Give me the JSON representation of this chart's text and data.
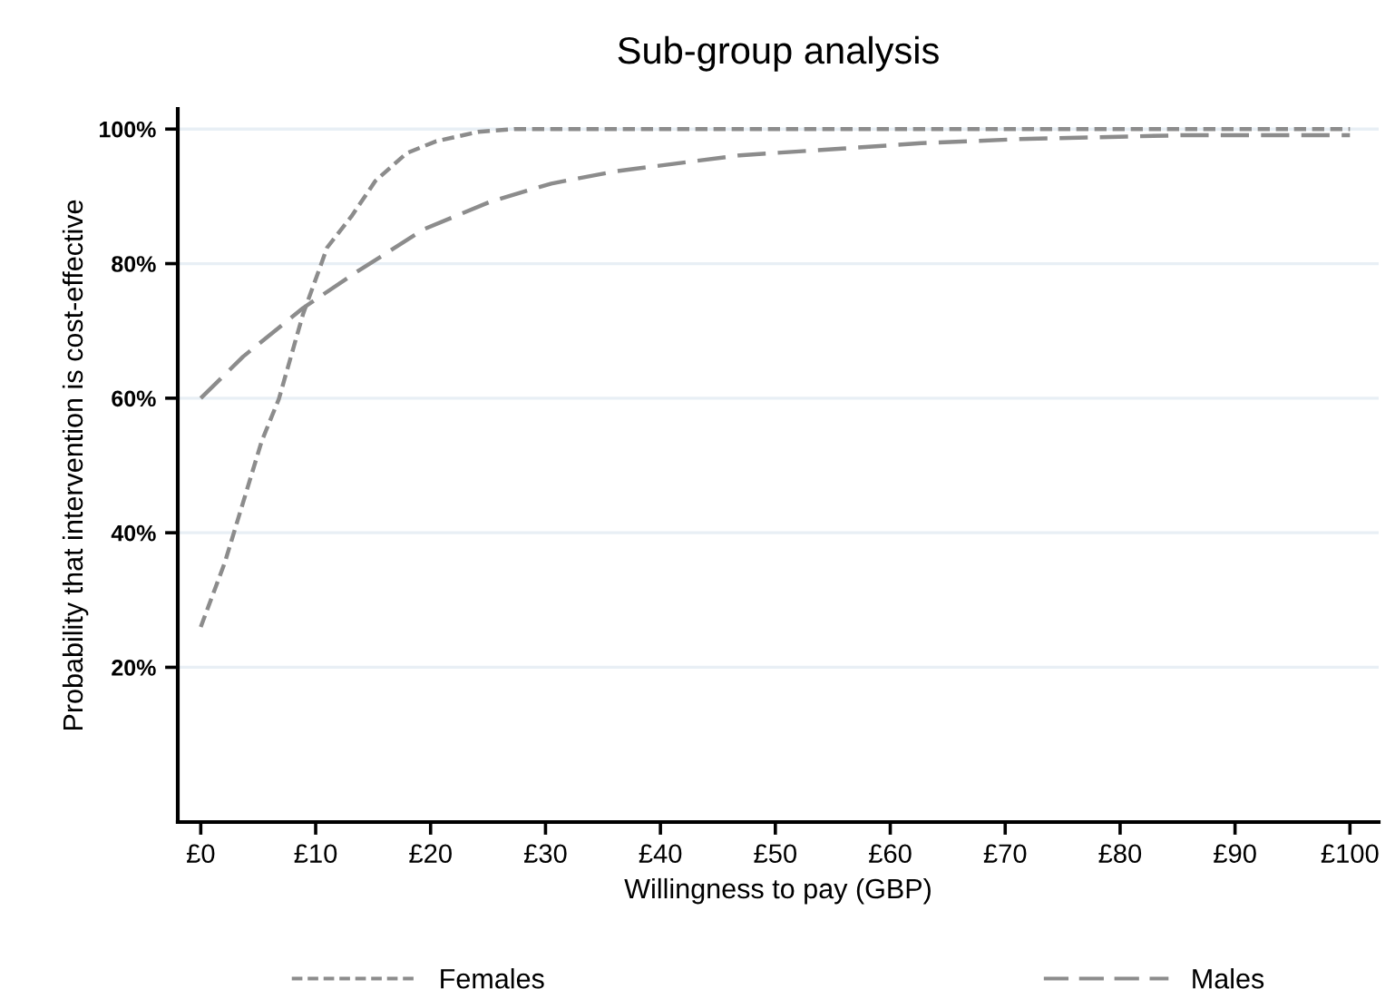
{
  "chart_data": {
    "type": "line",
    "title": "Sub-group analysis",
    "xlabel": "Willingness to pay (GBP)",
    "ylabel": "Probability that intervention is cost-effective",
    "xlim": [
      -2,
      102.5
    ],
    "ylim": [
      -3,
      103
    ],
    "xticks": [
      {
        "value": 0,
        "label": "£0"
      },
      {
        "value": 10,
        "label": "£10"
      },
      {
        "value": 20,
        "label": "£20"
      },
      {
        "value": 30,
        "label": "£30"
      },
      {
        "value": 40,
        "label": "£40"
      },
      {
        "value": 50,
        "label": "£50"
      },
      {
        "value": 60,
        "label": "£60"
      },
      {
        "value": 70,
        "label": "£70"
      },
      {
        "value": 80,
        "label": "£80"
      },
      {
        "value": 90,
        "label": "£90"
      },
      {
        "value": 100,
        "label": "£100"
      }
    ],
    "yticks": [
      {
        "value": 20,
        "label": "20%"
      },
      {
        "value": 40,
        "label": "40%"
      },
      {
        "value": 60,
        "label": "60%"
      },
      {
        "value": 80,
        "label": "80%"
      },
      {
        "value": 100,
        "label": "100%"
      }
    ],
    "grid": "y",
    "legend": "bottom",
    "marker": "none",
    "series": [
      {
        "name": "Females",
        "color": "#8c8c8c",
        "line_style": "dotted",
        "x": [
          0,
          2.1,
          3.7,
          5.3,
          6.8,
          8.9,
          11,
          13.1,
          15.2,
          17.9,
          20.5,
          24.2,
          27.3,
          40,
          60,
          80,
          100
        ],
        "values": [
          26,
          35.6,
          44.6,
          53.6,
          59.9,
          72.5,
          82.4,
          87,
          92.3,
          96.4,
          98.2,
          99.6,
          100,
          100,
          100,
          100,
          100
        ]
      },
      {
        "name": "Males",
        "color": "#8c8c8c",
        "line_style": "dashed",
        "x": [
          0,
          3.7,
          8.9,
          13.6,
          19.4,
          25.2,
          30.5,
          36,
          46.9,
          55.8,
          62.7,
          71.1,
          85.8,
          100
        ],
        "values": [
          60,
          66.2,
          73.4,
          78.8,
          85.1,
          89.2,
          91.9,
          93.7,
          96.1,
          97.1,
          97.9,
          98.5,
          99.1,
          99.1
        ]
      }
    ]
  }
}
